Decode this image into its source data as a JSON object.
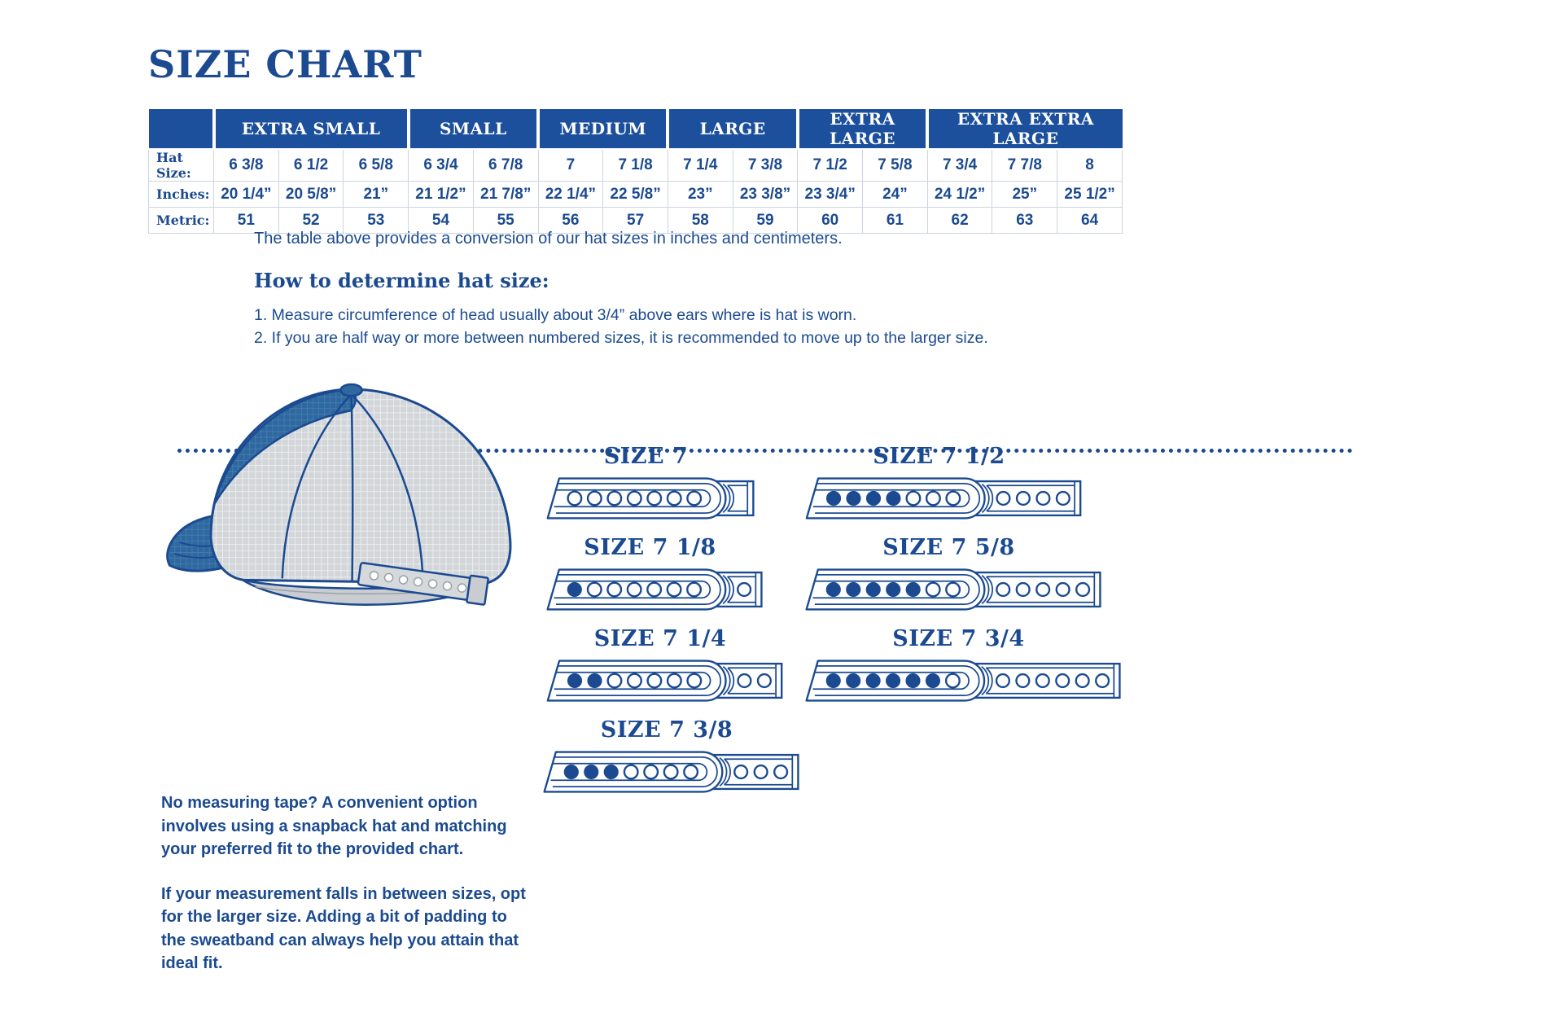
{
  "page": {
    "title": "SIZE CHART"
  },
  "colors": {
    "navy": "#1B4A90",
    "header_bg": "#1C4F9C",
    "table_border": "#ccd5e0",
    "hat_gray": "#d3d6d9",
    "hat_blue": "#2e689f"
  },
  "size_table": {
    "groups": [
      {
        "label": "EXTRA SMALL",
        "span": 3
      },
      {
        "label": "SMALL",
        "span": 2
      },
      {
        "label": "MEDIUM",
        "span": 2
      },
      {
        "label": "LARGE",
        "span": 2
      },
      {
        "label": "EXTRA LARGE",
        "span": 2
      },
      {
        "label": "EXTRA EXTRA LARGE",
        "span": 3
      }
    ],
    "rows": [
      {
        "label": "Hat Size:",
        "values": [
          "6 3/8",
          "6 1/2",
          "6 5/8",
          "6 3/4",
          "6 7/8",
          "7",
          "7 1/8",
          "7 1/4",
          "7 3/8",
          "7 1/2",
          "7 5/8",
          "7 3/4",
          "7 7/8",
          "8"
        ]
      },
      {
        "label": "Inches:",
        "values": [
          "20 1/4”",
          "20 5/8”",
          "21”",
          "21 1/2”",
          "21 7/8”",
          "22 1/4”",
          "22 5/8”",
          "23”",
          "23 3/8”",
          "23 3/4”",
          "24”",
          "24 1/2”",
          "25”",
          "25 1/2”"
        ]
      },
      {
        "label": "Metric:",
        "values": [
          "51",
          "52",
          "53",
          "54",
          "55",
          "56",
          "57",
          "58",
          "59",
          "60",
          "61",
          "62",
          "63",
          "64"
        ]
      }
    ]
  },
  "notes": {
    "table_caption": "The table above provides a conversion of our hat sizes in inches and centimeters.",
    "how_to_heading": "How to determine hat size:",
    "steps": [
      "1. Measure circumference of head usually about 3/4” above ears where is hat is worn.",
      "2. If you are half way or more between numbered sizes, it is recommended to move up to the larger size."
    ]
  },
  "snapback_tips": [
    "No measuring tape? A convenient option involves using a snapback hat and matching your preferred fit to the provided chart.",
    "If your measurement falls in between sizes, opt for the larger size. Adding a bit of padding to the sweatband can always help you attain that ideal fit."
  ],
  "strap_diagrams": [
    {
      "label": "SIZE 7",
      "snapped": 0,
      "open": 7,
      "tail_holes": 0
    },
    {
      "label": "SIZE 7 1/2",
      "snapped": 4,
      "open": 3,
      "tail_holes": 4
    },
    {
      "label": "SIZE 7 1/8",
      "snapped": 1,
      "open": 6,
      "tail_holes": 1
    },
    {
      "label": "SIZE 7 5/8",
      "snapped": 5,
      "open": 2,
      "tail_holes": 5
    },
    {
      "label": "SIZE 7 1/4",
      "snapped": 2,
      "open": 5,
      "tail_holes": 2
    },
    {
      "label": "SIZE 7 3/4",
      "snapped": 6,
      "open": 1,
      "tail_holes": 6
    },
    {
      "label": "SIZE 7 3/8",
      "snapped": 3,
      "open": 4,
      "tail_holes": 3
    }
  ]
}
